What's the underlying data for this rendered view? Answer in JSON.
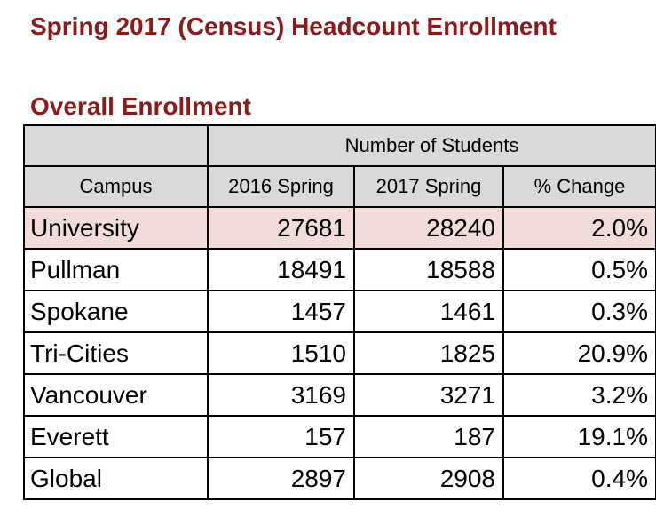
{
  "document": {
    "title": "Spring 2017 (Census) Headcount Enrollment",
    "section_title": "Overall Enrollment"
  },
  "table": {
    "group_header": "Number of Students",
    "columns": [
      "Campus",
      "2016 Spring",
      "2017 Spring",
      "% Change"
    ],
    "rows": [
      {
        "campus": "University",
        "spring_2016": "27681",
        "spring_2017": "28240",
        "pct_change": "2.0%"
      },
      {
        "campus": "Pullman",
        "spring_2016": "18491",
        "spring_2017": "18588",
        "pct_change": "0.5%"
      },
      {
        "campus": "Spokane",
        "spring_2016": "1457",
        "spring_2017": "1461",
        "pct_change": "0.3%"
      },
      {
        "campus": "Tri-Cities",
        "spring_2016": "1510",
        "spring_2017": "1825",
        "pct_change": "20.9%"
      },
      {
        "campus": "Vancouver",
        "spring_2016": "3169",
        "spring_2017": "3271",
        "pct_change": "3.2%"
      },
      {
        "campus": "Everett",
        "spring_2016": "157",
        "spring_2017": "187",
        "pct_change": "19.1%"
      },
      {
        "campus": "Global",
        "spring_2016": "2897",
        "spring_2017": "2908",
        "pct_change": "0.4%"
      }
    ],
    "highlight_color": "#f2dcdb",
    "header_color": "#d9d9d9"
  },
  "colors": {
    "title": "#8b1a1a"
  }
}
